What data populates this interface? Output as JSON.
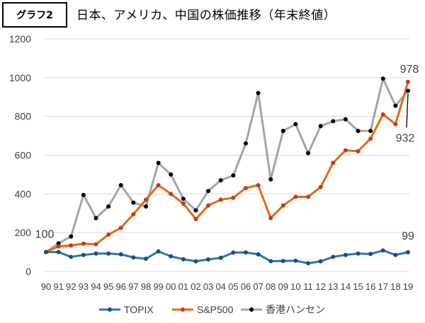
{
  "badge": "グラフ2",
  "title": "日本、アメリカ、中国の株価推移（年末終値）",
  "chart_data": {
    "type": "line",
    "title": "日本、アメリカ、中国の株価推移（年末終値）",
    "categories": [
      "90",
      "91",
      "92",
      "93",
      "94",
      "95",
      "96",
      "97",
      "98",
      "99",
      "00",
      "01",
      "02",
      "03",
      "04",
      "05",
      "06",
      "07",
      "08",
      "09",
      "10",
      "11",
      "12",
      "13",
      "14",
      "15",
      "16",
      "17",
      "18",
      "19"
    ],
    "ylim": [
      0,
      1200
    ],
    "yticks": [
      0,
      200,
      400,
      600,
      800,
      1000,
      1200
    ],
    "grid": "horizontal",
    "legend_position": "bottom",
    "series": [
      {
        "name": "TOPIX",
        "color": "#2e75b6",
        "values": [
          100,
          100,
          75,
          85,
          92,
          92,
          88,
          72,
          65,
          103,
          78,
          63,
          52,
          62,
          70,
          97,
          98,
          88,
          53,
          54,
          55,
          42,
          52,
          75,
          85,
          92,
          90,
          108,
          85,
          99
        ]
      },
      {
        "name": "S&P500",
        "color": "#e46c0a",
        "values": [
          100,
          129,
          134,
          143,
          140,
          190,
          225,
          295,
          370,
          445,
          400,
          350,
          270,
          340,
          370,
          380,
          430,
          445,
          275,
          340,
          385,
          385,
          435,
          560,
          625,
          620,
          685,
          810,
          760,
          978
        ]
      },
      {
        "name": "香港ハンセン",
        "color": "#a5a5a5",
        "values": [
          100,
          145,
          180,
          395,
          275,
          335,
          445,
          355,
          335,
          560,
          500,
          375,
          315,
          415,
          470,
          495,
          660,
          920,
          475,
          725,
          760,
          610,
          750,
          775,
          785,
          725,
          725,
          995,
          855,
          932
        ]
      }
    ],
    "annotations": [
      {
        "text": "100",
        "x": "90",
        "y": 100
      },
      {
        "text": "99",
        "x": "19",
        "y": 99
      },
      {
        "text": "978",
        "x": "19",
        "y": 978
      },
      {
        "text": "932",
        "x": "19",
        "y": 932
      }
    ]
  }
}
